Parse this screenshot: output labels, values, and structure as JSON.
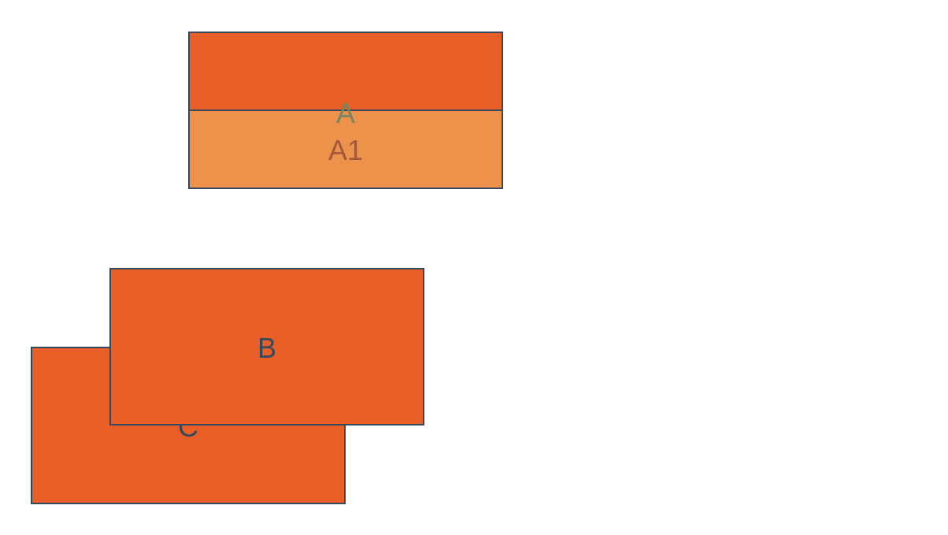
{
  "diagram": {
    "nodes": {
      "a": {
        "label": "A",
        "fill": "#e95f28"
      },
      "a1": {
        "label": "A1",
        "fill": "#ec924a"
      },
      "b": {
        "label": "B",
        "fill": "#e95f28"
      },
      "c": {
        "label": "C",
        "fill": "#e95f28"
      }
    },
    "colors": {
      "border": "#34495e",
      "text": "#34495e",
      "background": "#ffffff"
    }
  }
}
